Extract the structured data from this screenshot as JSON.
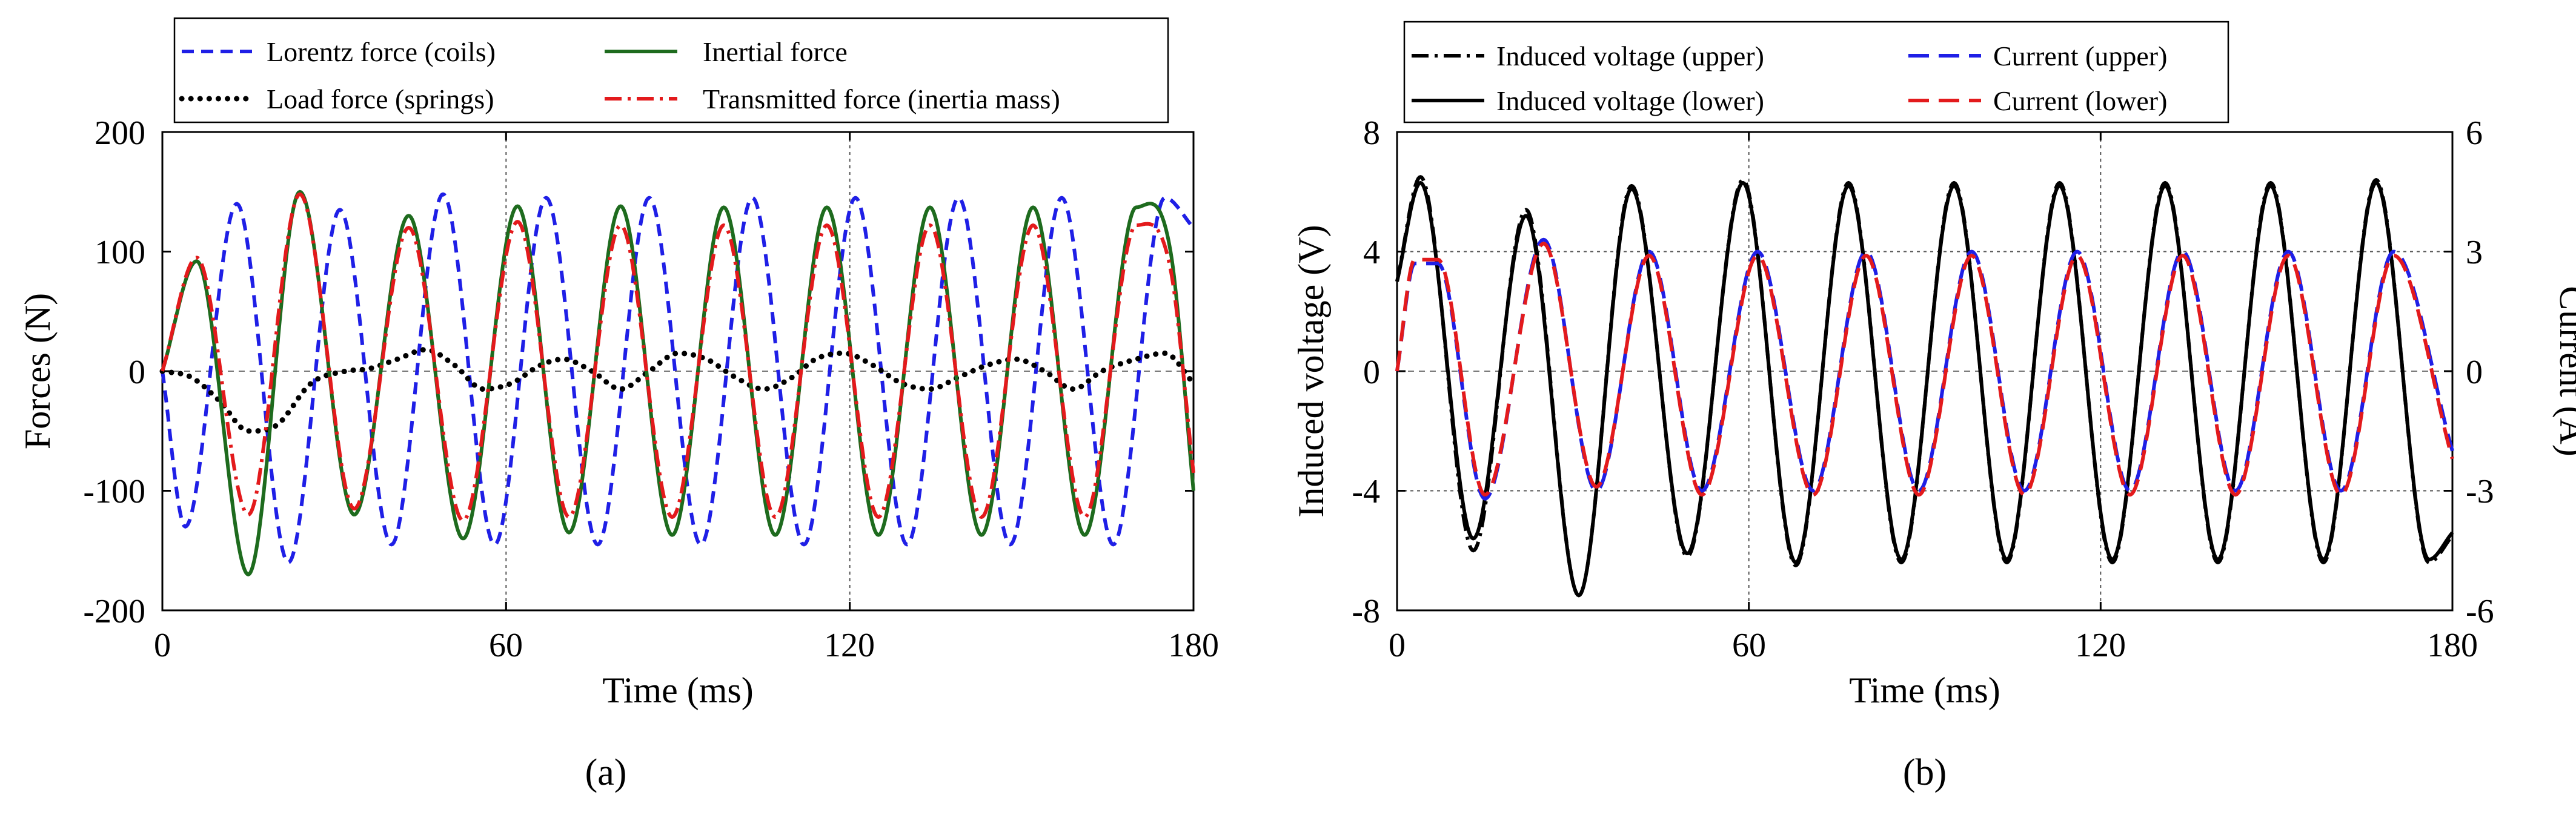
{
  "chart_data": [
    {
      "type": "line",
      "panel_label": "(a)",
      "xlabel": "Time (ms)",
      "ylabel": "Forces (N)",
      "xlim": [
        0,
        180
      ],
      "ylim": [
        -200,
        200
      ],
      "xticks": [
        0,
        60,
        120,
        180
      ],
      "yticks": [
        -200,
        -100,
        0,
        100,
        200
      ],
      "xtick_labels": [
        "0",
        "60",
        "120",
        "180"
      ],
      "ytick_labels": [
        "-200",
        "-100",
        "0",
        "100",
        "200"
      ],
      "grid": "vertical dotted at 60 and 120",
      "legend_position": "top",
      "series": [
        {
          "name": "Lorentz force (coils)",
          "color": "#1f1fe6",
          "dash": "dashed",
          "x": [
            0,
            4,
            13,
            22,
            31,
            40,
            49,
            58,
            67,
            76,
            85,
            94,
            103,
            112,
            121,
            130,
            139,
            148,
            157,
            166,
            175,
            180
          ],
          "y": [
            0,
            -130,
            140,
            -160,
            135,
            -145,
            148,
            -145,
            145,
            -145,
            145,
            -145,
            145,
            -145,
            145,
            -145,
            145,
            -145,
            145,
            -145,
            145,
            120
          ]
        },
        {
          "name": "Load force (springs)",
          "color": "#000000",
          "dash": "dotted",
          "x": [
            0,
            5,
            10,
            15,
            20,
            26,
            32,
            36,
            41,
            46,
            51,
            56,
            61,
            66,
            70,
            75,
            80,
            85,
            90,
            95,
            100,
            105,
            110,
            114,
            119,
            124,
            129,
            134,
            139,
            144,
            149,
            154,
            159,
            164,
            170,
            175,
            180
          ],
          "y": [
            0,
            -5,
            -25,
            -50,
            -45,
            -10,
            0,
            2,
            10,
            18,
            5,
            -15,
            -10,
            5,
            10,
            0,
            -15,
            0,
            15,
            10,
            -5,
            -15,
            -5,
            10,
            15,
            5,
            -10,
            -15,
            -5,
            5,
            10,
            0,
            -15,
            0,
            10,
            15,
            -10
          ]
        },
        {
          "name": "Inertial force",
          "color": "#1e6b1e",
          "dash": "solid",
          "x": [
            0,
            6,
            15,
            24,
            33.5,
            43,
            52.5,
            62,
            71,
            80,
            89,
            98,
            107,
            116,
            125,
            134,
            143,
            152,
            161,
            170,
            176,
            180
          ],
          "y": [
            0,
            92,
            -170,
            150,
            -120,
            130,
            -140,
            138,
            -135,
            138,
            -137,
            137,
            -137,
            137,
            -137,
            137,
            -137,
            137,
            -137,
            137,
            100,
            -100
          ]
        },
        {
          "name": "Transmitted force (inertia mass)",
          "color": "#e31a1c",
          "dash": "dashdot",
          "x": [
            0,
            6,
            15,
            24,
            33.5,
            43,
            52.5,
            62,
            71,
            80,
            89,
            98,
            107,
            116,
            125,
            134,
            143,
            152,
            161,
            170,
            176,
            180
          ],
          "y": [
            0,
            95,
            -120,
            148,
            -115,
            120,
            -125,
            125,
            -122,
            122,
            -122,
            122,
            -122,
            122,
            -122,
            122,
            -122,
            122,
            -122,
            122,
            85,
            -85
          ]
        }
      ]
    },
    {
      "type": "line",
      "panel_label": "(b)",
      "xlabel": "Time (ms)",
      "ylabel": "Induced voltage (V)",
      "ylabel_right": "Current (A)",
      "xlim": [
        0,
        180
      ],
      "ylim": [
        -8,
        8
      ],
      "ylim_right": [
        -6,
        6
      ],
      "xticks": [
        0,
        60,
        120,
        180
      ],
      "yticks": [
        -8,
        -4,
        0,
        4,
        8
      ],
      "yticks_right": [
        -6,
        -3,
        0,
        3,
        6
      ],
      "xtick_labels": [
        "0",
        "60",
        "120",
        "180"
      ],
      "ytick_labels": [
        "-8",
        "-4",
        "0",
        "4",
        "8"
      ],
      "ytick_labels_right": [
        "-6",
        "-3",
        "0",
        "3",
        "6"
      ],
      "grid": "vertical dotted at 60 and 120, horizontal dotted at -4 and 4",
      "legend_position": "top",
      "series": [
        {
          "name": "Induced voltage (upper)",
          "axis": "left",
          "color": "#000000",
          "dash": "dashdot",
          "x": [
            0,
            4,
            13,
            22,
            31,
            40,
            49.5,
            59,
            68,
            77,
            86,
            95,
            104,
            113,
            122,
            131,
            140,
            149,
            158,
            167,
            176,
            180
          ],
          "y": [
            3,
            6.5,
            -6,
            5.4,
            -7.5,
            6.2,
            -6.2,
            6.4,
            -6.5,
            6.3,
            -6.4,
            6.3,
            -6.4,
            6.3,
            -6.4,
            6.3,
            -6.4,
            6.3,
            -6.4,
            6.4,
            -6.4,
            -5.5
          ]
        },
        {
          "name": "Induced voltage (lower)",
          "axis": "left",
          "color": "#000000",
          "dash": "solid",
          "x": [
            0,
            4,
            13,
            22,
            31,
            40,
            49.5,
            59,
            68,
            77,
            86,
            95,
            104,
            113,
            122,
            131,
            140,
            149,
            158,
            167,
            176,
            180
          ],
          "y": [
            3,
            6.3,
            -5.6,
            5.2,
            -7.5,
            6.1,
            -6.1,
            6.3,
            -6.4,
            6.2,
            -6.3,
            6.2,
            -6.3,
            6.2,
            -6.3,
            6.2,
            -6.3,
            6.2,
            -6.3,
            6.3,
            -6.3,
            -5.4
          ]
        },
        {
          "name": "Current (upper)",
          "axis": "right",
          "color": "#1f1fe6",
          "dash": "dashed",
          "x": [
            0,
            3,
            7,
            15,
            25,
            34,
            43,
            52,
            61.5,
            71,
            80,
            89,
            98,
            107,
            116,
            125,
            134,
            143,
            152,
            161,
            170,
            180
          ],
          "y": [
            0,
            2.7,
            2.7,
            -3.2,
            3.3,
            -3,
            3,
            -3,
            3,
            -3,
            3,
            -3,
            3,
            -3,
            3,
            -3,
            3,
            -3,
            3,
            -3,
            3,
            -2
          ]
        },
        {
          "name": "Current (lower)",
          "axis": "right",
          "color": "#e31a1c",
          "dash": "dashed",
          "x": [
            0,
            3,
            7,
            15,
            25,
            34,
            43,
            52,
            61.5,
            71,
            80,
            89,
            98,
            107,
            116,
            125,
            134,
            143,
            152,
            161,
            170,
            180
          ],
          "y": [
            0,
            2.8,
            2.8,
            -3.1,
            3.2,
            -2.9,
            2.9,
            -3.1,
            2.9,
            -3.1,
            2.9,
            -3.1,
            2.9,
            -3.1,
            2.9,
            -3.1,
            2.9,
            -3.1,
            2.9,
            -3.1,
            2.9,
            -2.2
          ]
        }
      ]
    }
  ]
}
